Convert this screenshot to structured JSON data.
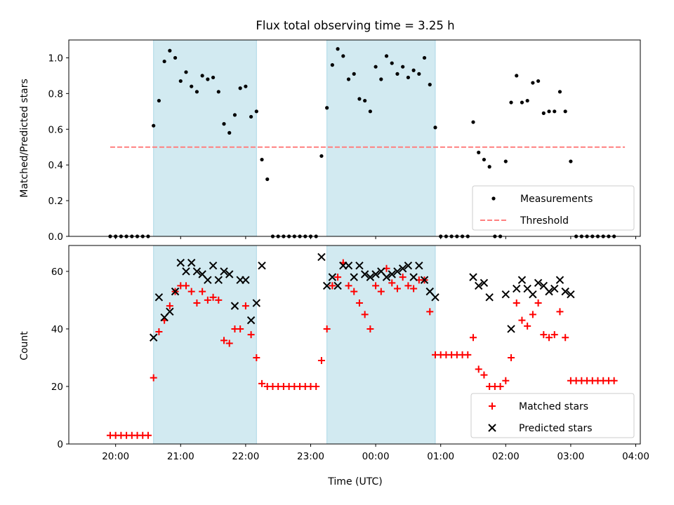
{
  "title": "Flux total observing time = 3.25 h",
  "xlabel": "Time (UTC)",
  "xticks": [
    "20:00",
    "21:00",
    "22:00",
    "23:00",
    "00:00",
    "01:00",
    "02:00",
    "03:00",
    "04:00"
  ],
  "chart_data": [
    {
      "type": "scatter",
      "ylabel": "Matched/Predicted stars",
      "ylim": [
        0,
        1.1
      ],
      "yticks": [
        "0.0",
        "0.2",
        "0.4",
        "0.6",
        "0.8",
        "1.0"
      ],
      "legend": {
        "placement": "lower-right",
        "entries": [
          "Measurements",
          "Threshold"
        ]
      },
      "threshold": {
        "name": "Threshold",
        "y": 0.5,
        "x_range": [
          "19:55",
          "03:50"
        ],
        "color": "#ff7f7f",
        "style": "dashed"
      },
      "highlight_intervals": [
        [
          "20:35",
          "22:10"
        ],
        [
          "23:15",
          "00:55"
        ]
      ],
      "highlight_color": "#add8e6",
      "series": [
        {
          "name": "Measurements",
          "color": "#000000",
          "points": [
            [
              "19:55",
              0
            ],
            [
              "20:00",
              0
            ],
            [
              "20:05",
              0
            ],
            [
              "20:10",
              0
            ],
            [
              "20:15",
              0
            ],
            [
              "20:20",
              0
            ],
            [
              "20:25",
              0
            ],
            [
              "20:30",
              0
            ],
            [
              "20:35",
              0.62
            ],
            [
              "20:40",
              0.76
            ],
            [
              "20:45",
              0.98
            ],
            [
              "20:50",
              1.04
            ],
            [
              "20:55",
              1.0
            ],
            [
              "21:00",
              0.87
            ],
            [
              "21:05",
              0.92
            ],
            [
              "21:10",
              0.84
            ],
            [
              "21:15",
              0.81
            ],
            [
              "21:20",
              0.9
            ],
            [
              "21:25",
              0.88
            ],
            [
              "21:30",
              0.89
            ],
            [
              "21:35",
              0.81
            ],
            [
              "21:40",
              0.63
            ],
            [
              "21:45",
              0.58
            ],
            [
              "21:50",
              0.68
            ],
            [
              "21:55",
              0.83
            ],
            [
              "22:00",
              0.84
            ],
            [
              "22:05",
              0.67
            ],
            [
              "22:10",
              0.7
            ],
            [
              "22:15",
              0.43
            ],
            [
              "22:20",
              0.32
            ],
            [
              "22:25",
              0
            ],
            [
              "22:30",
              0
            ],
            [
              "22:35",
              0
            ],
            [
              "22:40",
              0
            ],
            [
              "22:45",
              0
            ],
            [
              "22:50",
              0
            ],
            [
              "22:55",
              0
            ],
            [
              "23:00",
              0
            ],
            [
              "23:05",
              0
            ],
            [
              "23:10",
              0.45
            ],
            [
              "23:15",
              0.72
            ],
            [
              "23:20",
              0.96
            ],
            [
              "23:25",
              1.05
            ],
            [
              "23:30",
              1.01
            ],
            [
              "23:35",
              0.88
            ],
            [
              "23:40",
              0.91
            ],
            [
              "23:45",
              0.77
            ],
            [
              "23:50",
              0.76
            ],
            [
              "23:55",
              0.7
            ],
            [
              "00:00",
              0.95
            ],
            [
              "00:05",
              0.88
            ],
            [
              "00:10",
              1.01
            ],
            [
              "00:15",
              0.97
            ],
            [
              "00:20",
              0.91
            ],
            [
              "00:25",
              0.95
            ],
            [
              "00:30",
              0.89
            ],
            [
              "00:35",
              0.93
            ],
            [
              "00:40",
              0.91
            ],
            [
              "00:45",
              1.0
            ],
            [
              "00:50",
              0.85
            ],
            [
              "00:55",
              0.61
            ],
            [
              "01:00",
              0
            ],
            [
              "01:05",
              0
            ],
            [
              "01:10",
              0
            ],
            [
              "01:15",
              0
            ],
            [
              "01:20",
              0
            ],
            [
              "01:25",
              0
            ],
            [
              "01:30",
              0.64
            ],
            [
              "01:35",
              0.47
            ],
            [
              "01:40",
              0.43
            ],
            [
              "01:45",
              0.39
            ],
            [
              "01:50",
              0
            ],
            [
              "01:55",
              0
            ],
            [
              "02:00",
              0.42
            ],
            [
              "02:05",
              0.75
            ],
            [
              "02:10",
              0.9
            ],
            [
              "02:15",
              0.75
            ],
            [
              "02:20",
              0.76
            ],
            [
              "02:25",
              0.86
            ],
            [
              "02:30",
              0.87
            ],
            [
              "02:35",
              0.69
            ],
            [
              "02:40",
              0.7
            ],
            [
              "02:45",
              0.7
            ],
            [
              "02:50",
              0.81
            ],
            [
              "02:55",
              0.7
            ],
            [
              "03:00",
              0.42
            ],
            [
              "03:05",
              0
            ],
            [
              "03:10",
              0
            ],
            [
              "03:15",
              0
            ],
            [
              "03:20",
              0
            ],
            [
              "03:25",
              0
            ],
            [
              "03:30",
              0
            ],
            [
              "03:35",
              0
            ],
            [
              "03:40",
              0
            ]
          ]
        }
      ]
    },
    {
      "type": "scatter",
      "ylabel": "Count",
      "ylim": [
        0,
        69
      ],
      "yticks": [
        "0",
        "20",
        "40",
        "60"
      ],
      "legend": {
        "placement": "lower-right",
        "entries": [
          "Matched stars",
          "Predicted stars"
        ]
      },
      "highlight_intervals": [
        [
          "20:35",
          "22:10"
        ],
        [
          "23:15",
          "00:55"
        ]
      ],
      "highlight_color": "#add8e6",
      "series": [
        {
          "name": "Matched stars",
          "marker": "plus",
          "color": "#ff0000",
          "points": [
            [
              "19:55",
              3
            ],
            [
              "20:00",
              3
            ],
            [
              "20:05",
              3
            ],
            [
              "20:10",
              3
            ],
            [
              "20:15",
              3
            ],
            [
              "20:20",
              3
            ],
            [
              "20:25",
              3
            ],
            [
              "20:30",
              3
            ],
            [
              "20:35",
              23
            ],
            [
              "20:40",
              39
            ],
            [
              "20:45",
              43
            ],
            [
              "20:50",
              48
            ],
            [
              "20:55",
              53
            ],
            [
              "21:00",
              55
            ],
            [
              "21:05",
              55
            ],
            [
              "21:10",
              53
            ],
            [
              "21:15",
              49
            ],
            [
              "21:20",
              53
            ],
            [
              "21:25",
              50
            ],
            [
              "21:30",
              51
            ],
            [
              "21:35",
              50
            ],
            [
              "21:40",
              36
            ],
            [
              "21:45",
              35
            ],
            [
              "21:50",
              40
            ],
            [
              "21:55",
              40
            ],
            [
              "22:00",
              48
            ],
            [
              "22:05",
              38
            ],
            [
              "22:10",
              30
            ],
            [
              "22:15",
              21
            ],
            [
              "22:20",
              20
            ],
            [
              "22:25",
              20
            ],
            [
              "22:30",
              20
            ],
            [
              "22:35",
              20
            ],
            [
              "22:40",
              20
            ],
            [
              "22:45",
              20
            ],
            [
              "22:50",
              20
            ],
            [
              "22:55",
              20
            ],
            [
              "23:00",
              20
            ],
            [
              "23:05",
              20
            ],
            [
              "23:10",
              29
            ],
            [
              "23:15",
              40
            ],
            [
              "23:20",
              55
            ],
            [
              "23:25",
              58
            ],
            [
              "23:30",
              63
            ],
            [
              "23:35",
              55
            ],
            [
              "23:40",
              53
            ],
            [
              "23:45",
              49
            ],
            [
              "23:50",
              45
            ],
            [
              "23:55",
              40
            ],
            [
              "00:00",
              55
            ],
            [
              "00:05",
              53
            ],
            [
              "00:10",
              61
            ],
            [
              "00:15",
              56
            ],
            [
              "00:20",
              54
            ],
            [
              "00:25",
              58
            ],
            [
              "00:30",
              55
            ],
            [
              "00:35",
              54
            ],
            [
              "00:40",
              57
            ],
            [
              "00:45",
              57
            ],
            [
              "00:50",
              46
            ],
            [
              "00:55",
              31
            ],
            [
              "01:00",
              31
            ],
            [
              "01:05",
              31
            ],
            [
              "01:10",
              31
            ],
            [
              "01:15",
              31
            ],
            [
              "01:20",
              31
            ],
            [
              "01:25",
              31
            ],
            [
              "01:30",
              37
            ],
            [
              "01:35",
              26
            ],
            [
              "01:40",
              24
            ],
            [
              "01:45",
              20
            ],
            [
              "01:50",
              20
            ],
            [
              "01:55",
              20
            ],
            [
              "02:00",
              22
            ],
            [
              "02:05",
              30
            ],
            [
              "02:10",
              49
            ],
            [
              "02:15",
              43
            ],
            [
              "02:20",
              41
            ],
            [
              "02:25",
              45
            ],
            [
              "02:30",
              49
            ],
            [
              "02:35",
              38
            ],
            [
              "02:40",
              37
            ],
            [
              "02:45",
              38
            ],
            [
              "02:50",
              46
            ],
            [
              "02:55",
              37
            ],
            [
              "03:00",
              22
            ],
            [
              "03:05",
              22
            ],
            [
              "03:10",
              22
            ],
            [
              "03:15",
              22
            ],
            [
              "03:20",
              22
            ],
            [
              "03:25",
              22
            ],
            [
              "03:30",
              22
            ],
            [
              "03:35",
              22
            ],
            [
              "03:40",
              22
            ]
          ]
        },
        {
          "name": "Predicted stars",
          "marker": "x",
          "color": "#000000",
          "points": [
            [
              "20:35",
              37
            ],
            [
              "20:40",
              51
            ],
            [
              "20:45",
              44
            ],
            [
              "20:50",
              46
            ],
            [
              "20:55",
              53
            ],
            [
              "21:00",
              63
            ],
            [
              "21:05",
              60
            ],
            [
              "21:10",
              63
            ],
            [
              "21:15",
              60
            ],
            [
              "21:20",
              59
            ],
            [
              "21:25",
              57
            ],
            [
              "21:30",
              62
            ],
            [
              "21:35",
              57
            ],
            [
              "21:40",
              60
            ],
            [
              "21:45",
              59
            ],
            [
              "21:50",
              48
            ],
            [
              "21:55",
              57
            ],
            [
              "22:00",
              57
            ],
            [
              "22:05",
              43
            ],
            [
              "22:10",
              49
            ],
            [
              "22:15",
              62
            ],
            [
              "23:10",
              65
            ],
            [
              "23:15",
              55
            ],
            [
              "23:20",
              58
            ],
            [
              "23:25",
              55
            ],
            [
              "23:30",
              62
            ],
            [
              "23:35",
              62
            ],
            [
              "23:40",
              58
            ],
            [
              "23:45",
              62
            ],
            [
              "23:50",
              59
            ],
            [
              "23:55",
              58
            ],
            [
              "00:00",
              59
            ],
            [
              "00:05",
              60
            ],
            [
              "00:10",
              58
            ],
            [
              "00:15",
              59
            ],
            [
              "00:20",
              60
            ],
            [
              "00:25",
              61
            ],
            [
              "00:30",
              62
            ],
            [
              "00:35",
              58
            ],
            [
              "00:40",
              62
            ],
            [
              "00:45",
              57
            ],
            [
              "00:50",
              53
            ],
            [
              "00:55",
              51
            ],
            [
              "01:30",
              58
            ],
            [
              "01:35",
              55
            ],
            [
              "01:40",
              56
            ],
            [
              "01:45",
              51
            ],
            [
              "02:00",
              52
            ],
            [
              "02:05",
              40
            ],
            [
              "02:10",
              54
            ],
            [
              "02:15",
              57
            ],
            [
              "02:20",
              54
            ],
            [
              "02:25",
              52
            ],
            [
              "02:30",
              56
            ],
            [
              "02:35",
              55
            ],
            [
              "02:40",
              53
            ],
            [
              "02:45",
              54
            ],
            [
              "02:50",
              57
            ],
            [
              "02:55",
              53
            ],
            [
              "03:00",
              52
            ]
          ]
        }
      ]
    }
  ]
}
